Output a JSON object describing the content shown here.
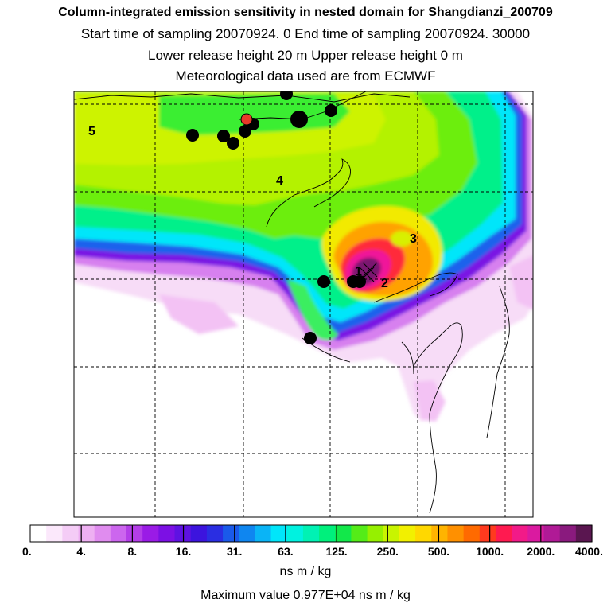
{
  "header": {
    "line1": "Column-integrated emission sensitivity in nested domain for Shangdianzi_200709",
    "line2": "Start time of sampling 20070924.     0      End time of sampling 20070924. 30000",
    "line3": "Lower release height   20 m            Upper release height    0 m",
    "line4": "Meteorological data used are from ECMWF"
  },
  "chart_data": {
    "type": "heatmap",
    "title": "Column-integrated emission sensitivity in nested domain for Shangdianzi_200709",
    "colorbar": {
      "tick_labels": [
        "0.",
        "4.",
        "8.",
        "16.",
        "31.",
        "63.",
        "125.",
        "250.",
        "500.",
        "1000.",
        "2000.",
        "4000."
      ],
      "units": "ns m / kg",
      "colors": [
        "#ffffff",
        "#fbe8fb",
        "#f4ccf6",
        "#eeb0f2",
        "#e08cef",
        "#cc66ee",
        "#b43ee8",
        "#9a1be6",
        "#7c10e4",
        "#5e12e2",
        "#3c14de",
        "#2a2ee2",
        "#1a5aea",
        "#0f86f0",
        "#0ab4f6",
        "#00e6fa",
        "#00f2e0",
        "#00f2b4",
        "#00f07c",
        "#12e84a",
        "#54ec18",
        "#96f000",
        "#c8f400",
        "#f2f000",
        "#ffd800",
        "#ffb400",
        "#ff9000",
        "#ff6a00",
        "#ff3a1e",
        "#ff1a50",
        "#f21a88",
        "#da1aa0",
        "#b01a96",
        "#8a1a7e",
        "#5a1650"
      ]
    },
    "trajectory_labels": [
      "5",
      "4",
      "3",
      "2",
      "1"
    ],
    "receptor": "Shangdianzi",
    "max_value": "Maximum value  0.977E+04 ns m / kg"
  }
}
